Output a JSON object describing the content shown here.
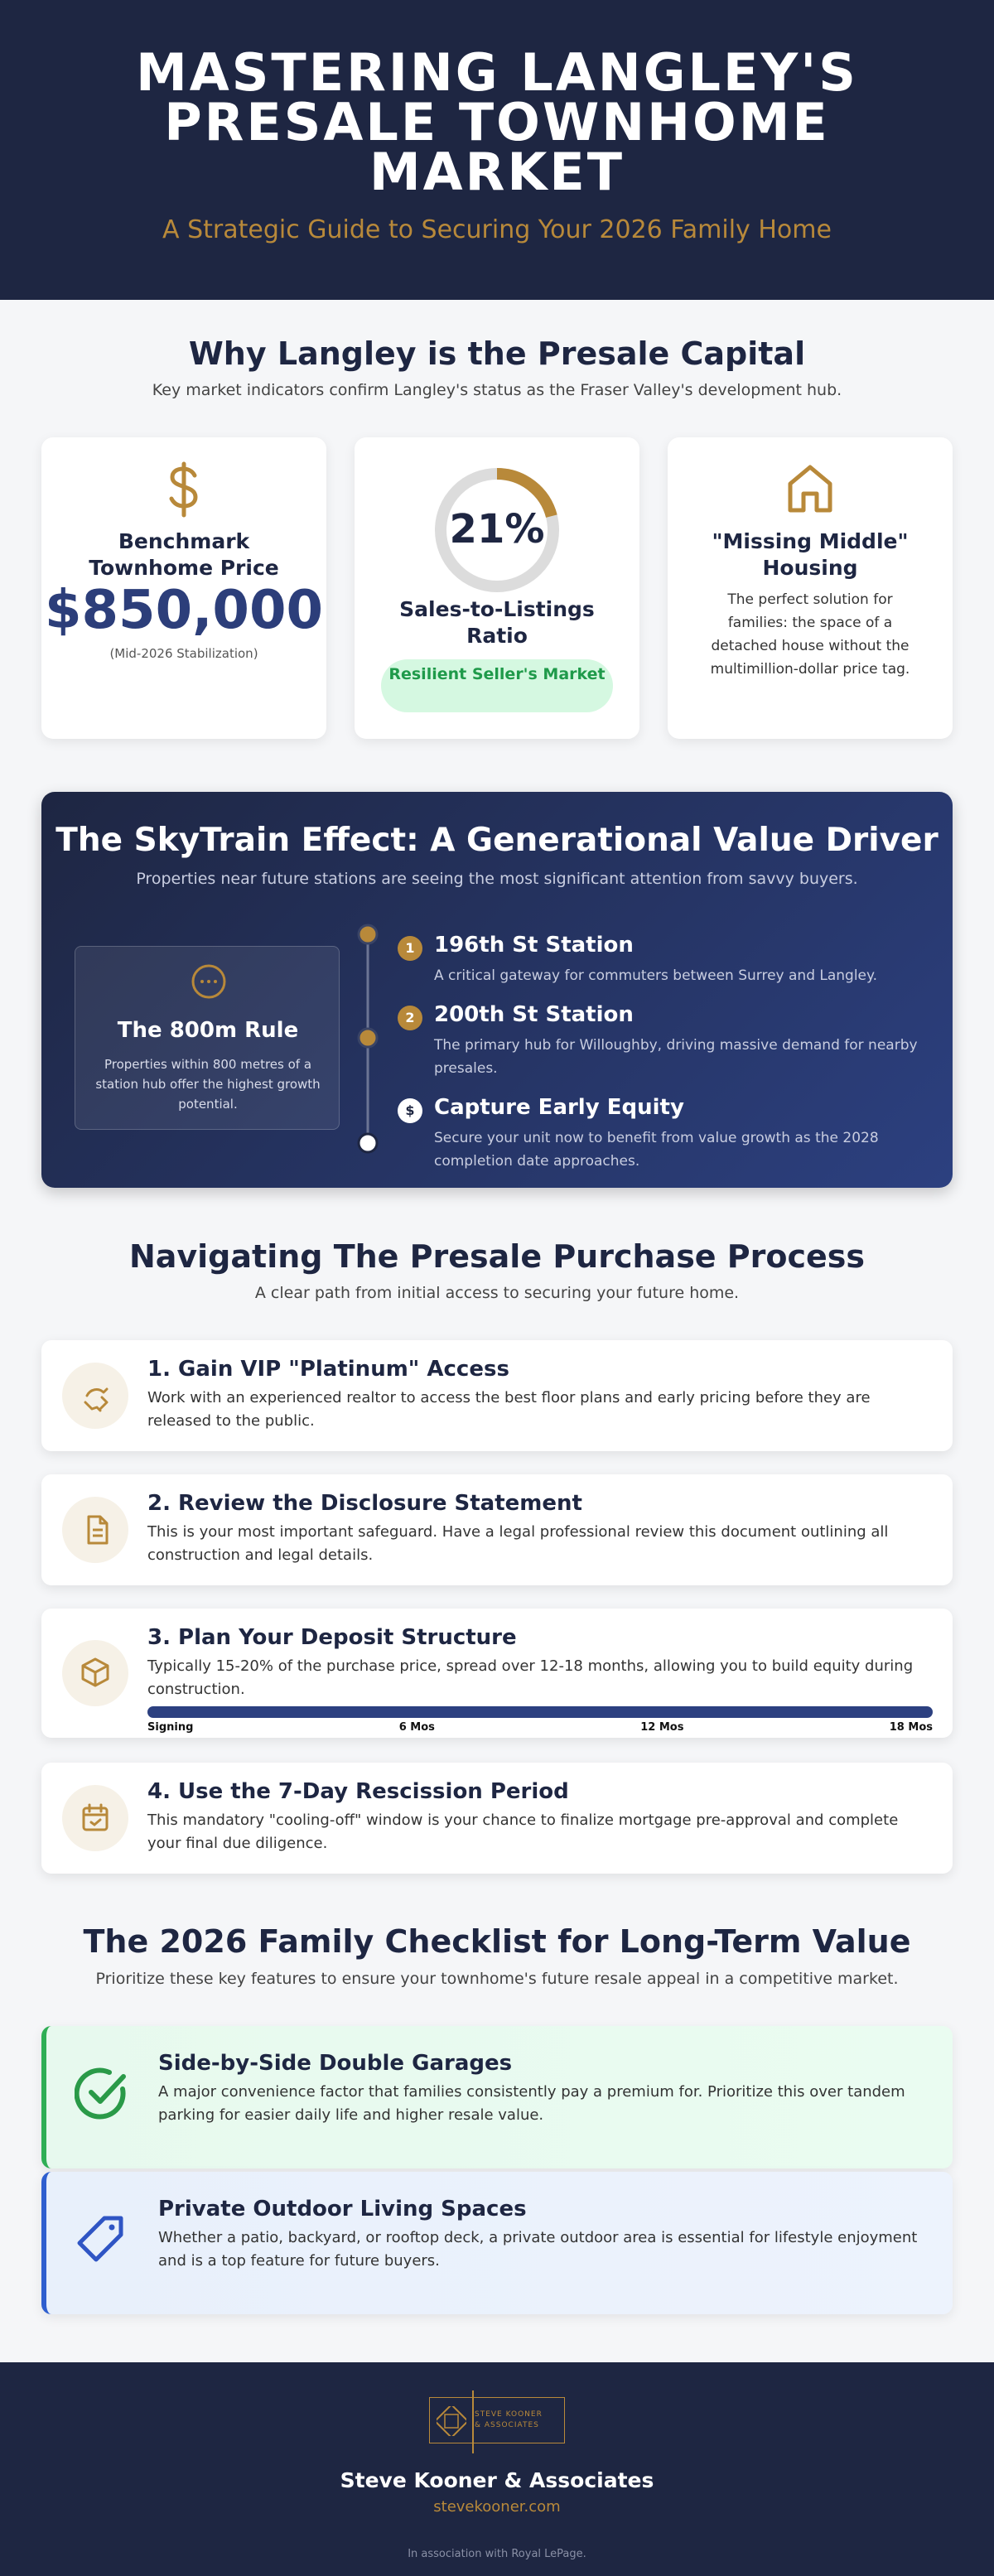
{
  "header": {
    "title_lines": [
      "MASTERING LANGLEY'S",
      "PRESALE TOWNHOME",
      "MARKET"
    ],
    "subtitle": "A Strategic Guide to Securing Your 2026 Family Home"
  },
  "market": {
    "heading": "Why Langley is the Presale Capital",
    "subtitle": "Key market indicators confirm Langley's status as the Fraser Valley's development hub.",
    "cards": [
      {
        "title": "Benchmark Townhome Price",
        "value": "$850,000",
        "note": "(Mid-2026 Stabilization)"
      },
      {
        "ratio": {
          "value": 21,
          "label": "21%"
        },
        "title": "Sales-to-Listings Ratio",
        "badge": "Resilient Seller's Market"
      },
      {
        "title": "\"Missing Middle\" Housing",
        "description": "The perfect solution for families: the space of a detached house without the multimillion-dollar price tag."
      }
    ]
  },
  "skytrain": {
    "heading": "The SkyTrain Effect: A Generational Value Driver",
    "subtitle": "Properties near future stations are seeing the most significant attention from savvy buyers.",
    "rule": {
      "title": "The 800m Rule",
      "description": "Properties within 800 metres of a station hub offer the highest growth potential."
    },
    "stations": [
      {
        "marker": "1",
        "title": "196th St Station",
        "description": "A critical gateway for commuters between Surrey and Langley."
      },
      {
        "marker": "2",
        "title": "200th St Station",
        "description": "The primary hub for Willoughby, driving massive demand for nearby presales."
      },
      {
        "marker": "$",
        "title": "Capture Early Equity",
        "description": "Secure your unit now to benefit from value growth as the 2028 completion date approaches."
      }
    ]
  },
  "process": {
    "heading": "Navigating The Presale Purchase Process",
    "subtitle": "A clear path from initial access to securing your future home.",
    "steps": [
      {
        "title": "1. Gain VIP \"Platinum\" Access",
        "description": "Work with an experienced realtor to access the best floor plans and early pricing before they are released to the public."
      },
      {
        "title": "2. Review the Disclosure Statement",
        "description": "This is your most important safeguard. Have a legal professional review this document outlining all construction and legal details."
      },
      {
        "title": "3. Plan Your Deposit Structure",
        "description": "Typically 15-20% of the purchase price, spread over 12-18 months, allowing you to build equity during construction."
      },
      {
        "title": "4. Use the 7-Day Rescission Period",
        "description": "This mandatory \"cooling-off\" window is your chance to finalize mortgage pre-approval and complete your final due diligence."
      }
    ],
    "deposit_timeline": [
      "Signing",
      "6 Mos",
      "12 Mos",
      "18 Mos"
    ]
  },
  "checklist": {
    "heading": "The 2026 Family Checklist for Long-Term Value",
    "subtitle": "Prioritize these key features to ensure your townhome's future resale appeal in a competitive market.",
    "items": [
      {
        "title": "Side-by-Side Double Garages",
        "description": "A major convenience factor that families consistently pay a premium for. Prioritize this over tandem parking for easier daily life and higher resale value."
      },
      {
        "title": "Private Outdoor Living Spaces",
        "description": "Whether a patio, backyard, or rooftop deck, a private outdoor area is essential for lifestyle enjoyment and is a top feature for future buyers."
      }
    ]
  },
  "footer": {
    "logo_lines": [
      "STEVE KOONER",
      "& ASSOCIATES"
    ],
    "name": "Steve Kooner & Associates",
    "url": "stevekooner.com",
    "association": "In association with Royal LePage."
  }
}
